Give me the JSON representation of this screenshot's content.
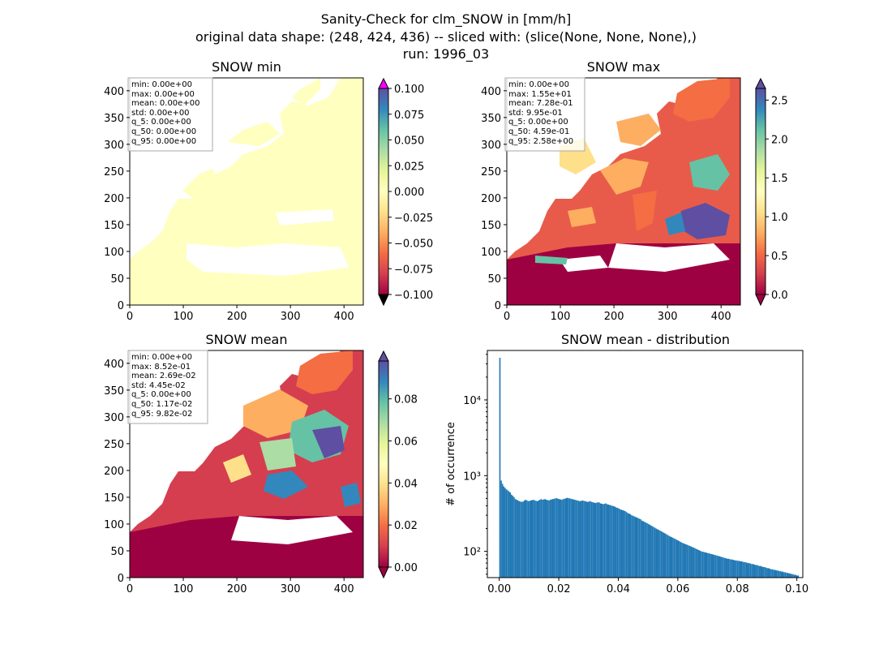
{
  "figure": {
    "title_line1": "Sanity-Check for clm_SNOW in [mm/h]",
    "title_line2": "original data shape: (248, 424, 436) -- sliced with: (slice(None, None, None),)",
    "title_line3": "run: 1996_03"
  },
  "colormap": "Spectral",
  "colors": {
    "bar_fill": "#1f77b4",
    "cmap_low": "#9e0142",
    "cmap_high": "#5e4fa2",
    "over_min": "#ff00ff",
    "under_min": "#000000"
  },
  "panels": {
    "min": {
      "title": "SNOW min",
      "stats": [
        "min: 0.00e+00",
        "max: 0.00e+00",
        "mean: 0.00e+00",
        "std: 0.00e+00",
        "q_5: 0.00e+00",
        "q_50: 0.00e+00",
        "q_95: 0.00e+00"
      ],
      "xticks": [
        "0",
        "100",
        "200",
        "300",
        "400"
      ],
      "yticks": [
        "0",
        "50",
        "100",
        "150",
        "200",
        "250",
        "300",
        "350",
        "400"
      ],
      "cbar_ticks": [
        "0.100",
        "0.075",
        "0.050",
        "0.025",
        "0.000",
        "−0.025",
        "−0.050",
        "−0.075",
        "−0.100"
      ]
    },
    "max": {
      "title": "SNOW max",
      "stats": [
        "min: 0.00e+00",
        "max: 1.55e+01",
        "mean: 7.28e-01",
        "std: 9.95e-01",
        "q_5: 0.00e+00",
        "q_50: 4.59e-01",
        "q_95: 2.58e+00"
      ],
      "xticks": [
        "0",
        "100",
        "200",
        "300",
        "400"
      ],
      "yticks": [
        "0",
        "50",
        "100",
        "150",
        "200",
        "250",
        "300",
        "350",
        "400"
      ],
      "cbar_ticks": [
        "2.5",
        "2.0",
        "1.5",
        "1.0",
        "0.5",
        "0.0"
      ]
    },
    "mean": {
      "title": "SNOW mean",
      "stats": [
        "min: 0.00e+00",
        "max: 8.52e-01",
        "mean: 2.69e-02",
        "std: 4.45e-02",
        "q_5: 0.00e+00",
        "q_50: 1.17e-02",
        "q_95: 9.82e-02"
      ],
      "xticks": [
        "0",
        "100",
        "200",
        "300",
        "400"
      ],
      "yticks": [
        "0",
        "50",
        "100",
        "150",
        "200",
        "250",
        "300",
        "350",
        "400"
      ],
      "cbar_ticks": [
        "0.08",
        "0.06",
        "0.04",
        "0.02",
        "0.00"
      ]
    },
    "hist": {
      "title": "SNOW mean - distribution",
      "ylabel": "# of occurrence",
      "xticks": [
        "0.00",
        "0.02",
        "0.04",
        "0.06",
        "0.08",
        "0.10"
      ],
      "yticks": [
        "10²",
        "10³",
        "10⁴"
      ]
    }
  },
  "chart_data": [
    {
      "type": "heatmap",
      "title": "SNOW min",
      "xlim": [
        0,
        436
      ],
      "ylim": [
        0,
        424
      ],
      "colorbar": {
        "min": -0.1,
        "max": 0.1,
        "extend": "both"
      },
      "grid": false
    },
    {
      "type": "heatmap",
      "title": "SNOW max",
      "xlim": [
        0,
        436
      ],
      "ylim": [
        0,
        424
      ],
      "colorbar": {
        "min": 0.0,
        "max": 2.65,
        "extend": "both"
      },
      "grid": false
    },
    {
      "type": "heatmap",
      "title": "SNOW mean",
      "xlim": [
        0,
        436
      ],
      "ylim": [
        0,
        424
      ],
      "colorbar": {
        "min": 0.0,
        "max": 0.098,
        "extend": "both"
      },
      "grid": false
    },
    {
      "type": "bar",
      "title": "SNOW mean - distribution",
      "ylabel": "# of occurrence",
      "yscale": "log",
      "xlim": [
        -0.004,
        0.102
      ],
      "ylim": [
        45,
        45000
      ],
      "bin_start": 0.0,
      "bin_width": 0.000434,
      "counts": [
        36000,
        860,
        780,
        720,
        690,
        660,
        640,
        620,
        600,
        560,
        540,
        520,
        490,
        480,
        470,
        460,
        455,
        450,
        455,
        470,
        480,
        470,
        460,
        465,
        470,
        475,
        480,
        470,
        465,
        460,
        470,
        480,
        490,
        480,
        485,
        490,
        480,
        475,
        470,
        480,
        485,
        490,
        495,
        500,
        505,
        495,
        490,
        485,
        480,
        490,
        495,
        500,
        510,
        505,
        500,
        495,
        490,
        485,
        480,
        475,
        470,
        465,
        460,
        465,
        470,
        465,
        460,
        455,
        450,
        455,
        460,
        450,
        445,
        440,
        435,
        440,
        445,
        440,
        430,
        425,
        420,
        425,
        430,
        420,
        415,
        410,
        405,
        400,
        395,
        390,
        380,
        375,
        370,
        360,
        355,
        350,
        345,
        340,
        330,
        320,
        315,
        310,
        300,
        295,
        290,
        285,
        280,
        275,
        270,
        265,
        255,
        250,
        245,
        240,
        235,
        230,
        225,
        220,
        215,
        210,
        205,
        200,
        196,
        192,
        188,
        184,
        180,
        176,
        172,
        168,
        164,
        160,
        157,
        154,
        151,
        148,
        145,
        142,
        139,
        136,
        133,
        130,
        128,
        126,
        124,
        122,
        120,
        118,
        116,
        114,
        112,
        110,
        108,
        106,
        104,
        102,
        100,
        99,
        98,
        97,
        96,
        95,
        94,
        93,
        92,
        91,
        90,
        89,
        88,
        87,
        86,
        85,
        84,
        83,
        82,
        81,
        80,
        80,
        79,
        78,
        78,
        77,
        76,
        76,
        75,
        75,
        74,
        74,
        73,
        72,
        72,
        71,
        70,
        70,
        69,
        68,
        68,
        67,
        66,
        66,
        65,
        64,
        64,
        63,
        62,
        62,
        61,
        60,
        60,
        59,
        58,
        58,
        57,
        57,
        56,
        56,
        55,
        55,
        54,
        54,
        53,
        53,
        52,
        52,
        51,
        51,
        50,
        50,
        49,
        49,
        48,
        48
      ]
    }
  ]
}
